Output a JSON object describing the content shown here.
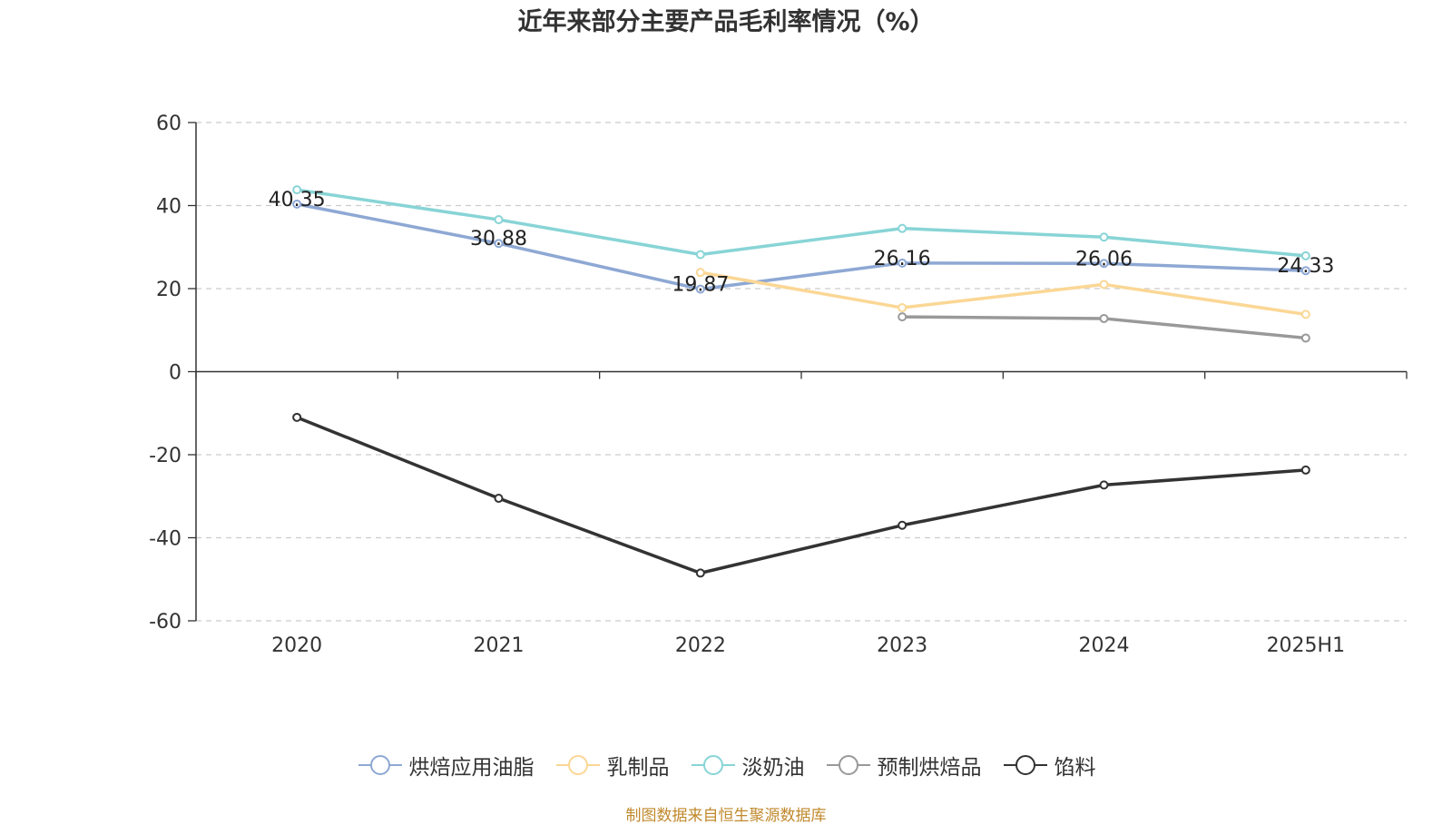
{
  "chart_data": {
    "type": "line",
    "title": "近年来部分主要产品毛利率情况（%）",
    "categories": [
      "2020",
      "2021",
      "2022",
      "2023",
      "2024",
      "2025H1"
    ],
    "ylim": [
      -60,
      60
    ],
    "yticks": [
      60,
      40,
      20,
      0,
      -20,
      -40,
      -60
    ],
    "grid": true,
    "legend_position": "bottom",
    "series": [
      {
        "name": "烘焙应用油脂",
        "color": "#8ea8d4",
        "values": [
          40.35,
          30.88,
          19.87,
          26.16,
          26.06,
          24.33
        ],
        "labels": [
          "40.35",
          "30.88",
          "19.87",
          "26.16",
          "26.06",
          "24.33"
        ]
      },
      {
        "name": "乳制品",
        "color": "#fbd795",
        "values": [
          null,
          null,
          23.9,
          15.4,
          21.0,
          13.8
        ]
      },
      {
        "name": "淡奶油",
        "color": "#88d4d6",
        "values": [
          43.8,
          36.6,
          28.2,
          34.5,
          32.4,
          27.9
        ]
      },
      {
        "name": "预制烘焙品",
        "color": "#999999",
        "values": [
          null,
          null,
          null,
          13.2,
          12.8,
          8.1
        ]
      },
      {
        "name": "馅料",
        "color": "#333333",
        "values": [
          -11.0,
          -30.5,
          -48.5,
          -37.0,
          -27.3,
          -23.7
        ]
      }
    ]
  },
  "source": "制图数据来自恒生聚源数据库"
}
